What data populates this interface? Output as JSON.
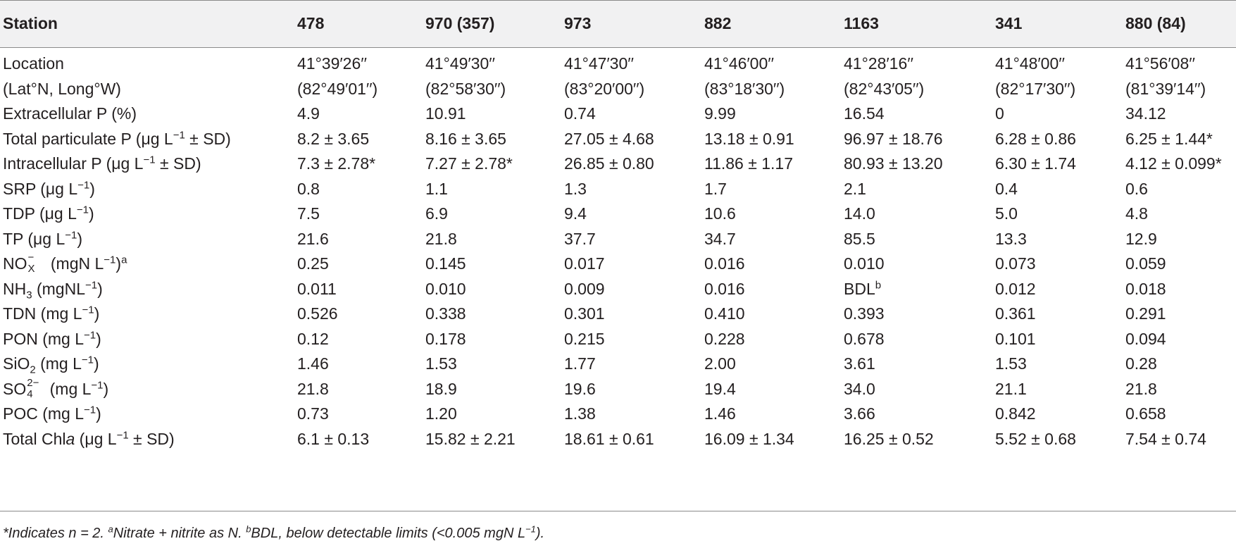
{
  "header": {
    "label": "Station",
    "stations": [
      "478",
      "970 (357)",
      "973",
      "882",
      "1163",
      "341",
      "880 (84)"
    ]
  },
  "rows": [
    {
      "label": "Location",
      "values": [
        "41°39′26′′",
        "41°49′30′′",
        "41°47′30′′",
        "41°46′00′′",
        "41°28′16′′",
        "41°48′00′′",
        "41°56′08′′"
      ]
    },
    {
      "label": "(Lat°N, Long°W)",
      "values": [
        "(82°49′01′′)",
        "(82°58′30′′)",
        "(83°20′00′′)",
        "(83°18′30′′)",
        "(82°43′05′′)",
        "(82°17′30′′)",
        "(81°39′14′′)"
      ]
    },
    {
      "label": "Extracellular P (%)",
      "values": [
        "4.9",
        "10.91",
        "0.74",
        "9.99",
        "16.54",
        "0",
        "34.12"
      ]
    },
    {
      "label_pre": "Total particulate P (μg L",
      "label_sup": "−1",
      "label_post": " ± SD)",
      "values": [
        "8.2 ± 3.65",
        "8.16 ± 3.65",
        "27.05 ± 4.68",
        "13.18 ± 0.91",
        "96.97 ± 18.76",
        "6.28 ± 0.86",
        "6.25 ± 1.44*"
      ]
    },
    {
      "label_pre": "Intracellular P (μg L",
      "label_sup": "−1",
      "label_post": " ± SD)",
      "values": [
        "7.3 ± 2.78*",
        "7.27 ± 2.78*",
        "26.85 ± 0.80",
        "11.86 ± 1.17",
        "80.93 ± 13.20",
        "6.30 ± 1.74",
        "4.12 ± 0.099*"
      ]
    },
    {
      "label_pre": "SRP (μg L",
      "label_sup": "−1",
      "label_post": ")",
      "values": [
        "0.8",
        "1.1",
        "1.3",
        "1.7",
        "2.1",
        "0.4",
        "0.6"
      ]
    },
    {
      "label_pre": "TDP (μg L",
      "label_sup": "−1",
      "label_post": ")",
      "values": [
        "7.5",
        "6.9",
        "9.4",
        "10.6",
        "14.0",
        "5.0",
        "4.8"
      ]
    },
    {
      "label_pre": "TP (μg L",
      "label_sup": "−1",
      "label_post": ")",
      "values": [
        "21.6",
        "21.8",
        "37.7",
        "34.7",
        "85.5",
        "13.3",
        "12.9"
      ]
    },
    {
      "label_pre": "NO",
      "label_stack_sup": "−",
      "label_stack_sub": "X",
      "label_mid": " (mgN L",
      "label_sup": "−1",
      "label_post": ")",
      "label_post_sup": "a",
      "values": [
        "0.25",
        "0.145",
        "0.017",
        "0.016",
        "0.010",
        "0.073",
        "0.059"
      ]
    },
    {
      "label_pre": "NH",
      "label_sub": "3",
      "label_mid": " (mgNL",
      "label_sup": "−1",
      "label_post": ")",
      "values": [
        "0.011",
        "0.010",
        "0.009",
        "0.016",
        "BDL",
        "0.012",
        "0.018"
      ],
      "bdl_sup": "b"
    },
    {
      "label_pre": "TDN (mg L",
      "label_sup": "−1",
      "label_post": ")",
      "values": [
        "0.526",
        "0.338",
        "0.301",
        "0.410",
        "0.393",
        "0.361",
        "0.291"
      ]
    },
    {
      "label_pre": "PON (mg L",
      "label_sup": "−1",
      "label_post": ")",
      "values": [
        "0.12",
        "0.178",
        "0.215",
        "0.228",
        "0.678",
        "0.101",
        "0.094"
      ]
    },
    {
      "label_pre": "SiO",
      "label_sub": "2",
      "label_mid": " (mg L",
      "label_sup": "−1",
      "label_post": ")",
      "values": [
        "1.46",
        "1.53",
        "1.77",
        "2.00",
        "3.61",
        "1.53",
        "0.28"
      ]
    },
    {
      "label_pre": "SO",
      "label_stack_sup": "2−",
      "label_stack_sub": "4",
      "label_mid": " (mg L",
      "label_sup": "−1",
      "label_post": ")",
      "values": [
        "21.8",
        "18.9",
        "19.6",
        "19.4",
        "34.0",
        "21.1",
        "21.8"
      ]
    },
    {
      "label_pre": "POC (mg L",
      "label_sup": "−1",
      "label_post": ")",
      "values": [
        "0.73",
        "1.20",
        "1.38",
        "1.46",
        "3.66",
        "0.842",
        "0.658"
      ]
    },
    {
      "label_pre": "Total Chl",
      "label_italic": "a",
      "label_mid": " (μg L",
      "label_sup": "−1",
      "label_post": " ± SD)",
      "values": [
        "6.1 ± 0.13",
        "15.82 ± 2.21",
        "18.61 ± 0.61",
        "16.09 ± 1.34",
        "16.25 ± 0.52",
        "5.52 ± 0.68",
        "7.54 ± 0.74"
      ]
    }
  ],
  "footnote": {
    "star": "*Indicates n = 2. ",
    "a_mark": "a",
    "a_text": "Nitrate + nitrite as N. ",
    "b_mark": "b",
    "b_text": "BDL, below detectable limits (<0.005 mgN L",
    "b_sup": "−1",
    "b_end": ")."
  }
}
